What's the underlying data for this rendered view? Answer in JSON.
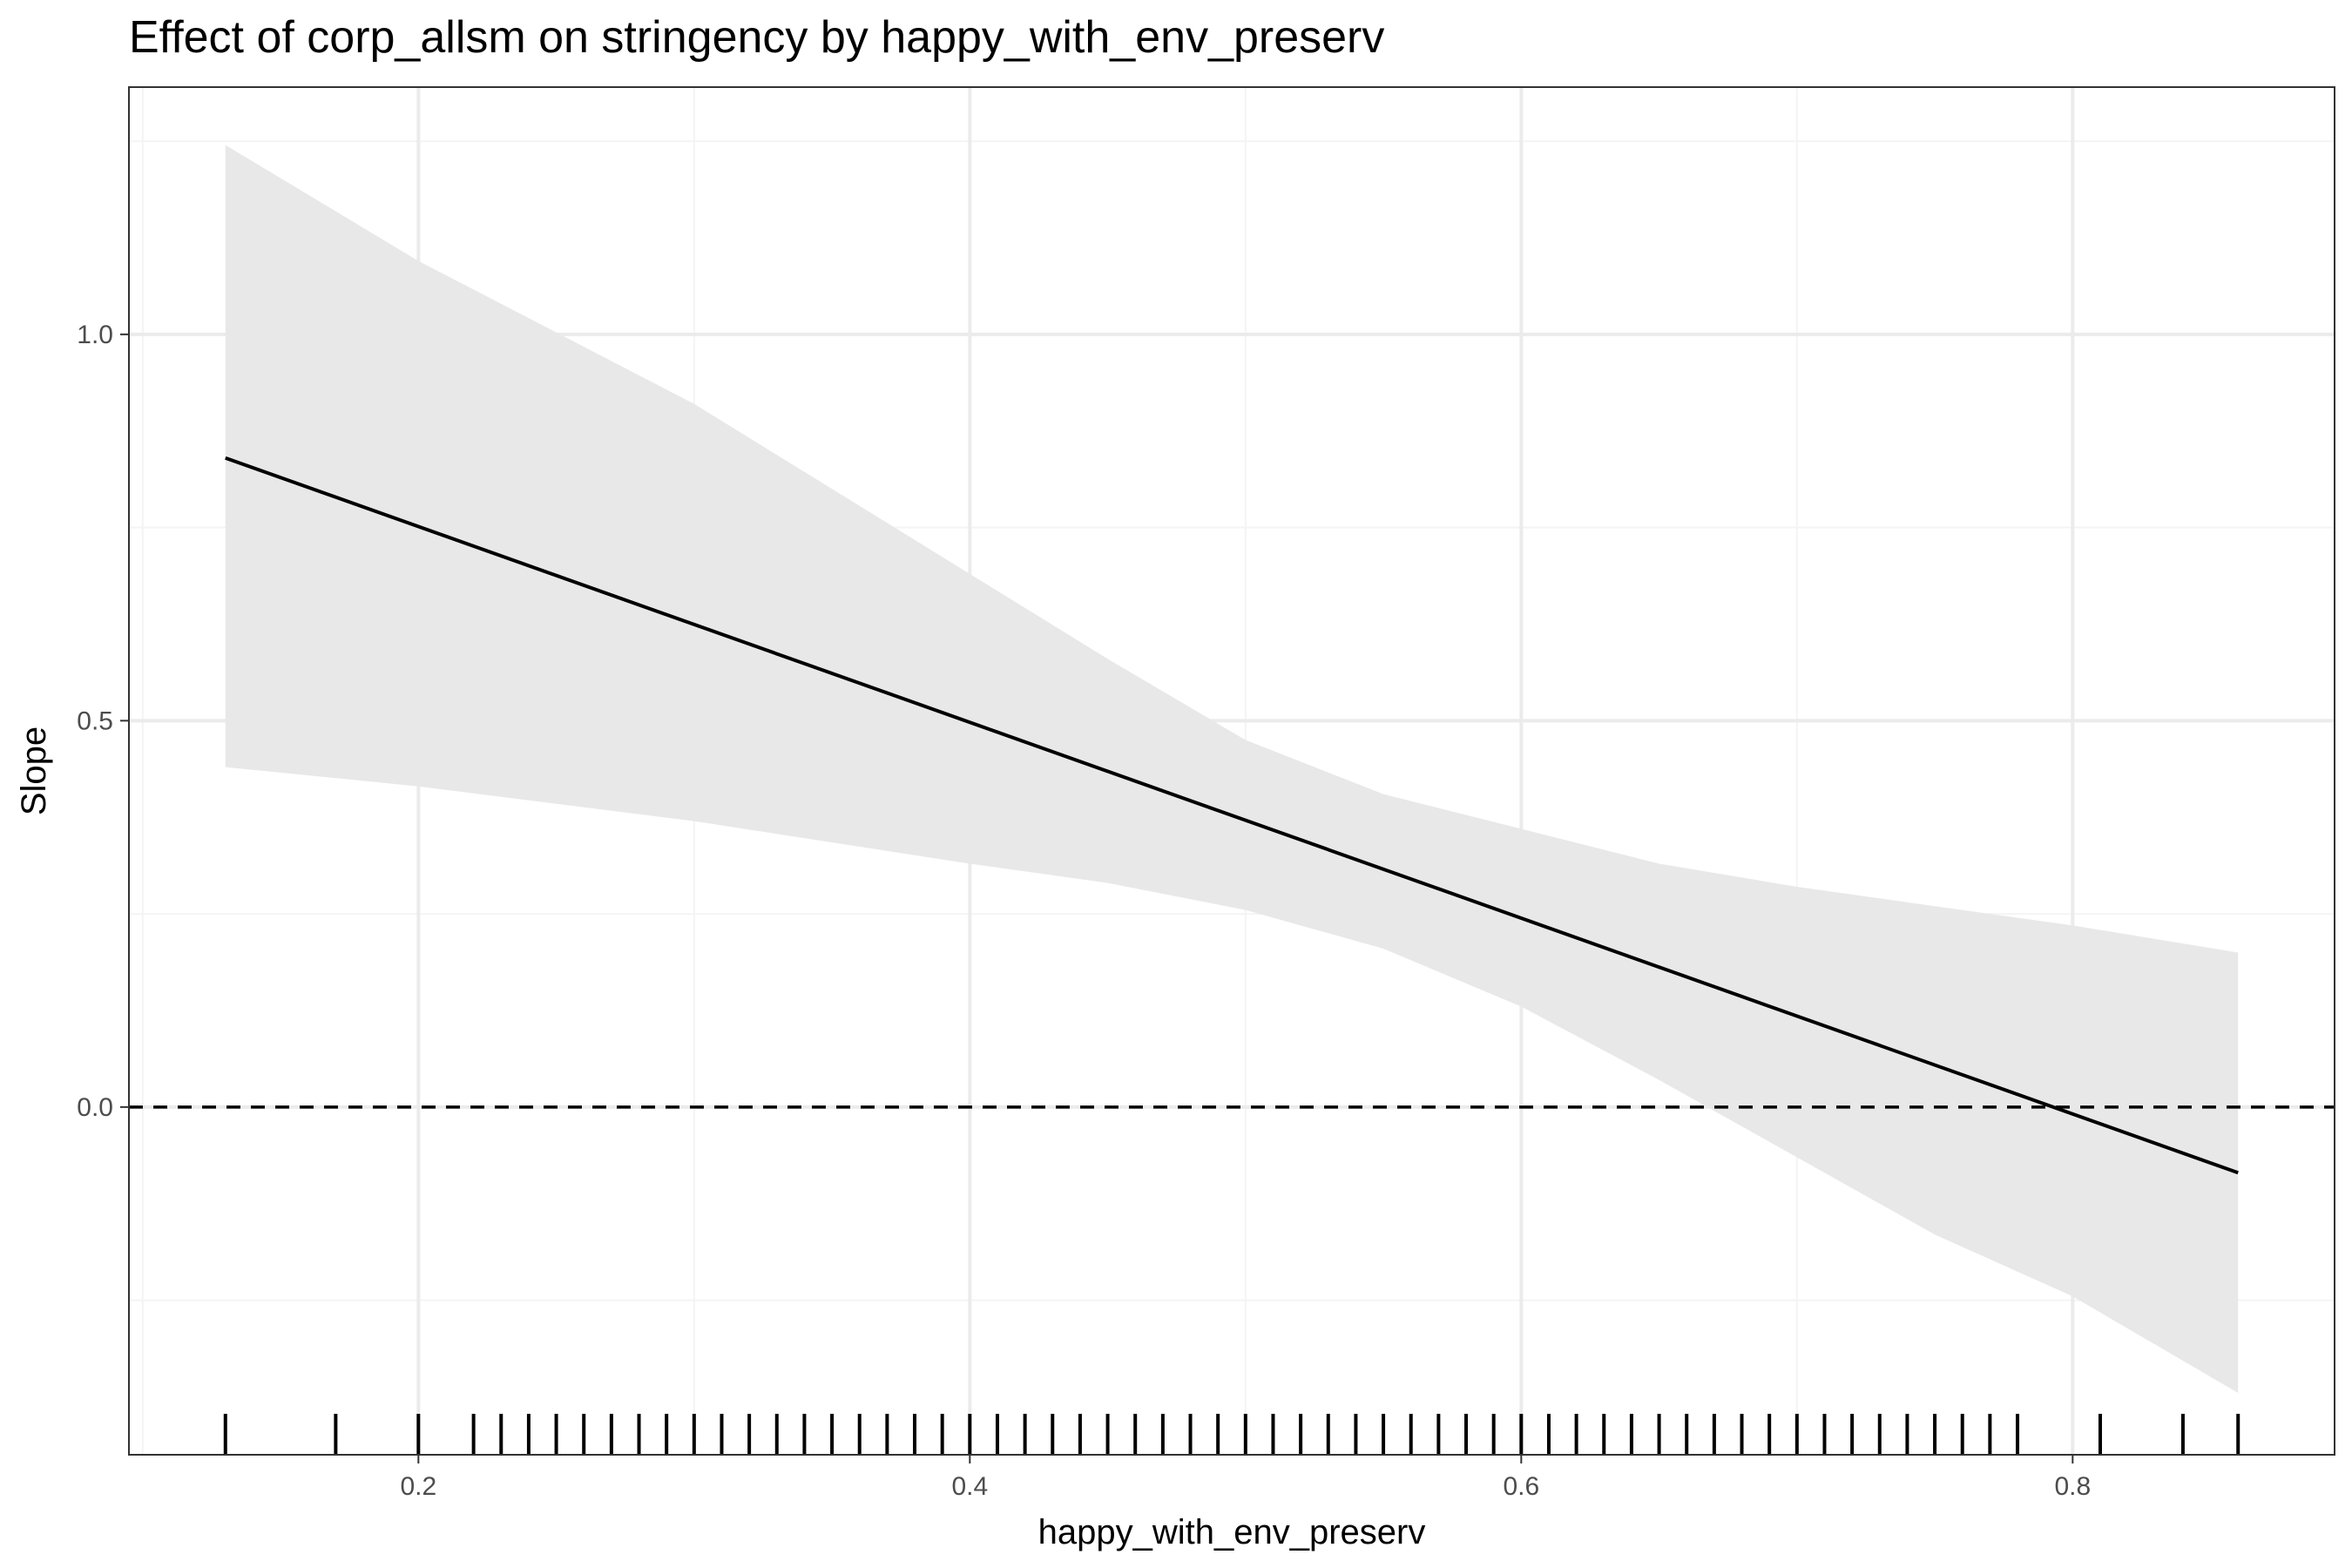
{
  "chart_data": {
    "type": "line",
    "title": "Effect of corp_allsm on stringency by happy_with_env_preserv",
    "xlabel": "happy_with_env_preserv",
    "ylabel": "Slope",
    "xlim": [
      0.095,
      0.895
    ],
    "ylim": [
      -0.45,
      1.32
    ],
    "x_ticks": [
      0.2,
      0.4,
      0.6,
      0.8
    ],
    "x_tick_labels": [
      "0.2",
      "0.4",
      "0.6",
      "0.8"
    ],
    "y_ticks": [
      0.0,
      0.5,
      1.0
    ],
    "y_tick_labels": [
      "0.0",
      "0.5",
      "1.0"
    ],
    "x_minor": [
      0.1,
      0.3,
      0.5,
      0.7
    ],
    "y_minor": [
      -0.25,
      0.25,
      0.75,
      1.25
    ],
    "grid": true,
    "reference_line": {
      "y": 0,
      "style": "dashed"
    },
    "series": [
      {
        "x": [
          0.13,
          0.86
        ],
        "y": [
          0.84,
          -0.085
        ]
      }
    ],
    "confidence_band": {
      "x": [
        0.13,
        0.2,
        0.3,
        0.4,
        0.45,
        0.5,
        0.55,
        0.6,
        0.65,
        0.7,
        0.75,
        0.8,
        0.86
      ],
      "upper": [
        1.245,
        1.095,
        0.91,
        0.69,
        0.58,
        0.475,
        0.405,
        0.36,
        0.315,
        0.285,
        0.26,
        0.235,
        0.2
      ],
      "lower": [
        0.44,
        0.415,
        0.37,
        0.315,
        0.29,
        0.255,
        0.205,
        0.13,
        0.035,
        -0.065,
        -0.165,
        -0.245,
        -0.37
      ]
    },
    "rug_x": [
      0.13,
      0.17,
      0.2,
      0.22,
      0.23,
      0.24,
      0.25,
      0.26,
      0.27,
      0.28,
      0.29,
      0.3,
      0.31,
      0.32,
      0.33,
      0.34,
      0.35,
      0.36,
      0.37,
      0.38,
      0.39,
      0.4,
      0.41,
      0.42,
      0.43,
      0.44,
      0.45,
      0.46,
      0.47,
      0.48,
      0.49,
      0.5,
      0.51,
      0.52,
      0.53,
      0.54,
      0.55,
      0.56,
      0.57,
      0.58,
      0.59,
      0.6,
      0.61,
      0.62,
      0.63,
      0.64,
      0.65,
      0.66,
      0.67,
      0.68,
      0.69,
      0.7,
      0.71,
      0.72,
      0.73,
      0.74,
      0.75,
      0.76,
      0.77,
      0.78,
      0.81,
      0.84,
      0.86
    ],
    "colors": {
      "line": "#000000",
      "band": "#e8e8e8",
      "grid_major": "#ebebeb",
      "grid_minor": "#f4f4f4",
      "panel_border": "#333333"
    }
  }
}
